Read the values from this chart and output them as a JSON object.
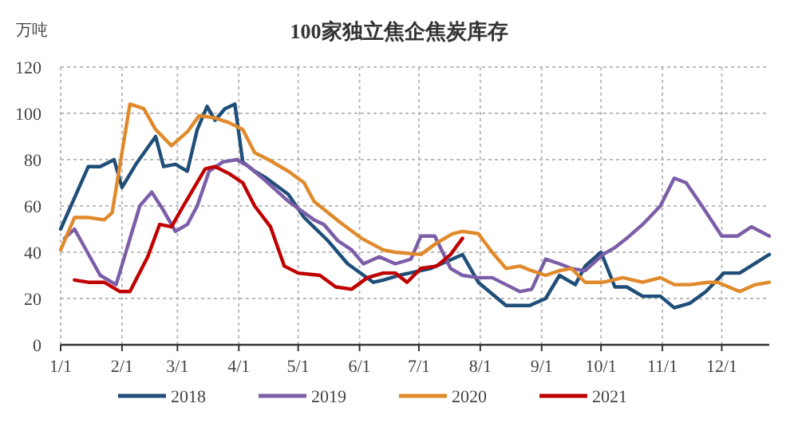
{
  "chart_data": {
    "type": "line",
    "title": "100家独立焦企焦炭库存",
    "ylabel": "万吨",
    "xlim": [
      "--01-01",
      "--12-25"
    ],
    "xticks": [
      {
        "value": "--01-01",
        "label": "1/1"
      },
      {
        "value": "--02-01",
        "label": "2/1"
      },
      {
        "value": "--03-01",
        "label": "3/1"
      },
      {
        "value": "--04-01",
        "label": "4/1"
      },
      {
        "value": "--05-01",
        "label": "5/1"
      },
      {
        "value": "--06-01",
        "label": "6/1"
      },
      {
        "value": "--07-01",
        "label": "7/1"
      },
      {
        "value": "--08-01",
        "label": "8/1"
      },
      {
        "value": "--09-01",
        "label": "9/1"
      },
      {
        "value": "--10-01",
        "label": "10/1"
      },
      {
        "value": "--11-01",
        "label": "11/1"
      },
      {
        "value": "--12-01",
        "label": "12/1"
      }
    ],
    "ylim": [
      0,
      120
    ],
    "yticks": [
      0,
      20,
      40,
      60,
      80,
      100,
      120
    ],
    "grid": true,
    "legend": "bottom",
    "marker": "none",
    "line_style": "solid",
    "series": [
      {
        "name": "2018",
        "color": "#1f4e79",
        "x": [
          "--01-01",
          "--01-15",
          "--01-21",
          "--01-28",
          "--02-01",
          "--02-08",
          "--02-18",
          "--02-22",
          "--02-28",
          "--03-06",
          "--03-11",
          "--03-16",
          "--03-20",
          "--03-25",
          "--03-30",
          "--04-03",
          "--04-09",
          "--04-15",
          "--04-26",
          "--05-04",
          "--05-16",
          "--05-26",
          "--06-08",
          "--06-13",
          "--06-21",
          "--07-07",
          "--07-23",
          "--07-31",
          "--08-14",
          "--08-26",
          "--09-03",
          "--09-10",
          "--09-18",
          "--09-23",
          "--10-01",
          "--10-08",
          "--10-14",
          "--10-22",
          "--10-31",
          "--11-07",
          "--11-15",
          "--11-23",
          "--12-02",
          "--12-10",
          "--12-25"
        ],
        "values": [
          50,
          77,
          77,
          80,
          68,
          78,
          90,
          77,
          78,
          75,
          93,
          103,
          97,
          102,
          104,
          79,
          75,
          72,
          65,
          55,
          45,
          35,
          27,
          28,
          30,
          33,
          39,
          27,
          17,
          17,
          20,
          30,
          26,
          34,
          40,
          25,
          25,
          21,
          21,
          16,
          18,
          23,
          31,
          31,
          39
        ]
      },
      {
        "name": "2019",
        "color": "#7b5ea7",
        "x": [
          "--01-03",
          "--01-08",
          "--01-21",
          "--01-29",
          "--02-10",
          "--02-16",
          "--02-22",
          "--02-28",
          "--03-06",
          "--03-11",
          "--03-17",
          "--03-24",
          "--03-31",
          "--04-06",
          "--04-13",
          "--04-26",
          "--05-09",
          "--05-14",
          "--05-21",
          "--05-28",
          "--06-03",
          "--06-11",
          "--06-19",
          "--06-27",
          "--07-02",
          "--07-09",
          "--07-17",
          "--07-23",
          "--07-31",
          "--08-07",
          "--08-14",
          "--08-21",
          "--08-27",
          "--09-03",
          "--09-10",
          "--09-16",
          "--09-23",
          "--10-02",
          "--10-08",
          "--10-14",
          "--10-22",
          "--10-31",
          "--11-07",
          "--11-13",
          "--11-21",
          "--12-01",
          "--12-09",
          "--12-16",
          "--12-25"
        ],
        "values": [
          46,
          50,
          30,
          26,
          60,
          66,
          58,
          49,
          52,
          60,
          75,
          79,
          80,
          77,
          72,
          62,
          54,
          52,
          45,
          41,
          35,
          38,
          35,
          37,
          47,
          47,
          33,
          30,
          29,
          29,
          26,
          23,
          24,
          37,
          35,
          33,
          32,
          39,
          42,
          46,
          52,
          60,
          72,
          70,
          60,
          47,
          47,
          51,
          47
        ]
      },
      {
        "name": "2020",
        "color": "#e08a2c",
        "x": [
          "--01-01",
          "--01-08",
          "--01-15",
          "--01-23",
          "--01-27",
          "--02-05",
          "--02-12",
          "--02-18",
          "--02-26",
          "--03-06",
          "--03-12",
          "--03-20",
          "--03-27",
          "--04-03",
          "--04-09",
          "--04-16",
          "--04-26",
          "--05-04",
          "--05-09",
          "--05-22",
          "--06-02",
          "--06-13",
          "--06-19",
          "--07-02",
          "--07-10",
          "--07-18",
          "--07-23",
          "--07-31",
          "--08-07",
          "--08-14",
          "--08-21",
          "--08-27",
          "--09-03",
          "--09-10",
          "--09-16",
          "--09-23",
          "--10-02",
          "--10-12",
          "--10-22",
          "--10-31",
          "--11-07",
          "--11-15",
          "--11-24",
          "--11-29",
          "--12-10",
          "--12-18",
          "--12-25"
        ],
        "values": [
          41,
          55,
          55,
          54,
          57,
          104,
          102,
          93,
          86,
          92,
          99,
          98,
          96,
          93,
          83,
          80,
          75,
          70,
          62,
          53,
          46,
          41,
          40,
          39,
          44,
          48,
          49,
          48,
          40,
          33,
          34,
          32,
          30,
          32,
          33,
          27,
          27,
          29,
          27,
          29,
          26,
          26,
          27,
          27,
          23,
          26,
          27
        ]
      },
      {
        "name": "2021",
        "color": "#c00000",
        "x": [
          "--01-08",
          "--01-15",
          "--01-23",
          "--01-31",
          "--02-05",
          "--02-14",
          "--02-20",
          "--02-26",
          "--03-04",
          "--03-15",
          "--03-20",
          "--03-27",
          "--04-03",
          "--04-09",
          "--04-17",
          "--04-24",
          "--05-01",
          "--05-12",
          "--05-20",
          "--05-28",
          "--06-05",
          "--06-13",
          "--06-19",
          "--06-25",
          "--07-02",
          "--07-10",
          "--07-17",
          "--07-23"
        ],
        "values": [
          28,
          27,
          27,
          23,
          23,
          38,
          52,
          51,
          60,
          76,
          77,
          74,
          70,
          60,
          51,
          34,
          31,
          30,
          25,
          24,
          29,
          31,
          31,
          27,
          33,
          34,
          39,
          46
        ]
      }
    ]
  }
}
